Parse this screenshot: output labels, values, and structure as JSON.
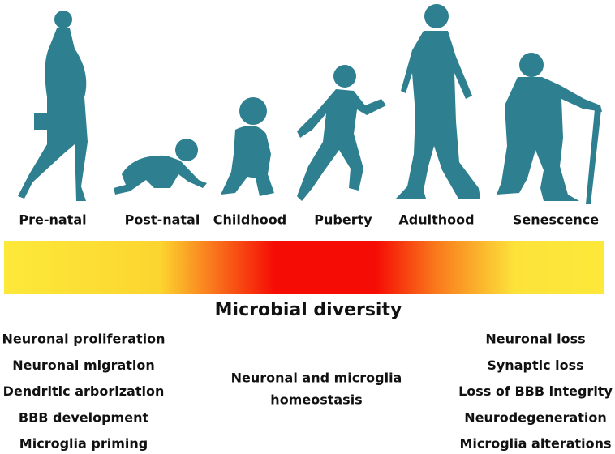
{
  "stages": [
    "Pre-natal",
    "Post-natal",
    "Childhood",
    "Puberty",
    "Adulthood",
    "Senescence"
  ],
  "bar_label": "Microbial diversity",
  "left_list": [
    "Neuronal proliferation",
    "Neuronal migration",
    "Dendritic arborization",
    "BBB development",
    "Microglia priming"
  ],
  "center_text": [
    "Neuronal and microglia",
    "homeostasis"
  ],
  "right_list": [
    "Neuronal loss",
    "Synaptic loss",
    "Loss of BBB integrity",
    "Neurodegeneration",
    "Microglia alterations"
  ]
}
